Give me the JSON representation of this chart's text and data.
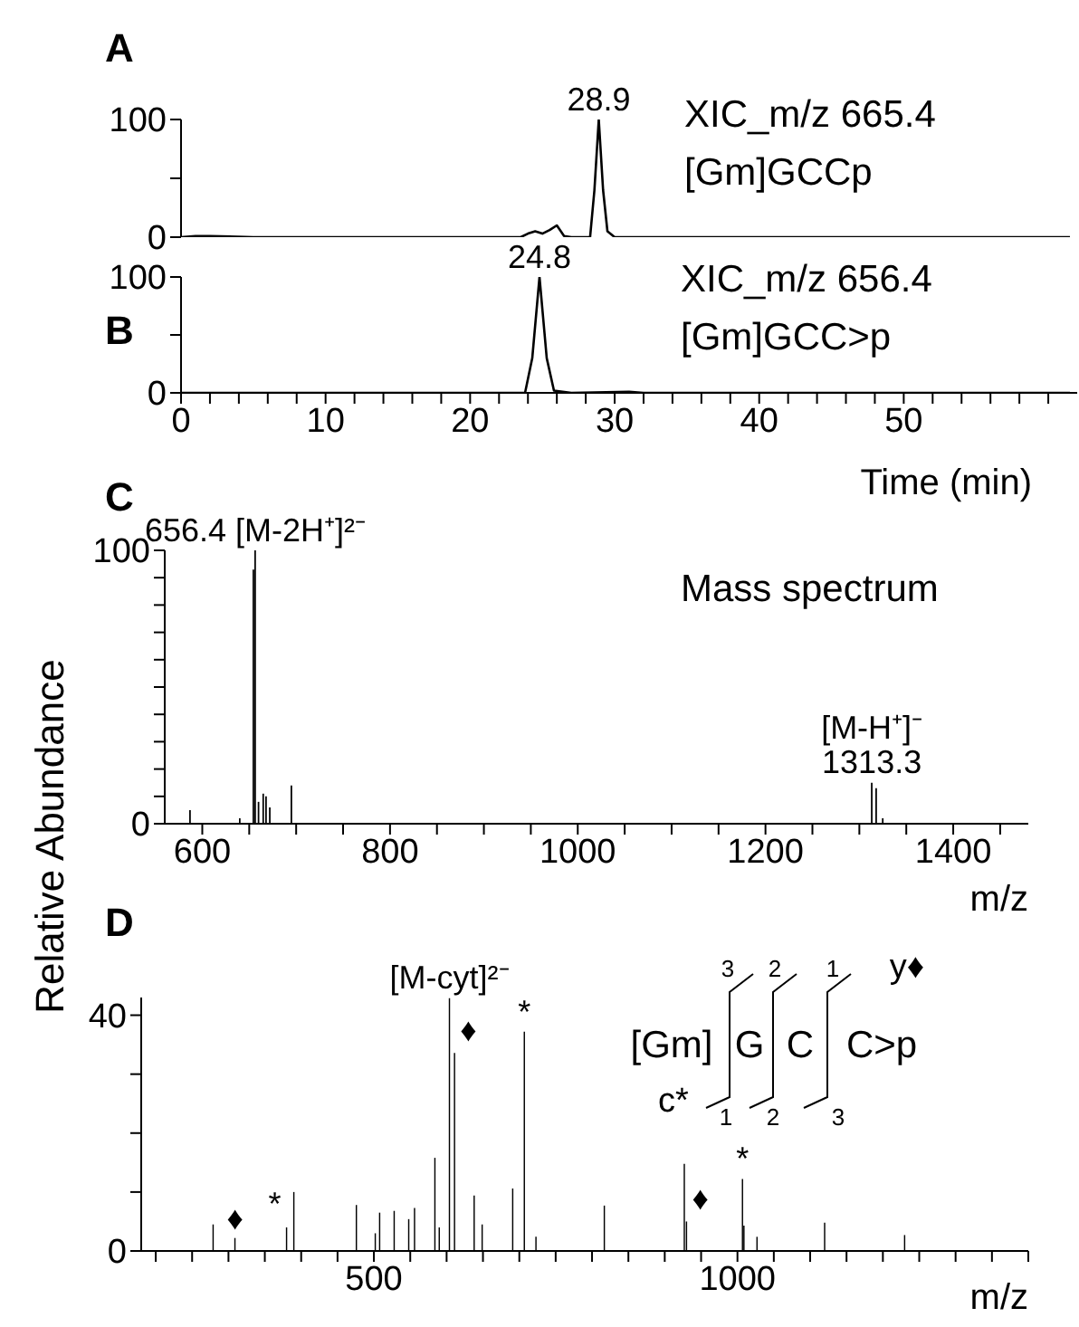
{
  "chart_data": [
    {
      "type": "line",
      "title": "A",
      "x": [
        0,
        1,
        2,
        5,
        10,
        20,
        23.5,
        24,
        24.5,
        25,
        25.5,
        26,
        26.5,
        27,
        28.3,
        28.6,
        28.9,
        29.2,
        29.5,
        30,
        40,
        50,
        61.5
      ],
      "values": [
        0,
        1,
        1,
        0,
        0,
        0,
        0,
        3,
        5,
        3,
        6,
        10,
        1,
        0,
        0,
        40,
        100,
        40,
        5,
        0,
        0,
        0,
        0
      ],
      "color": "#000000",
      "xlim": [
        0,
        62
      ],
      "ylim": [
        0,
        100
      ],
      "yticks": [
        0,
        {
          "value": 50,
          "label": null
        },
        100
      ],
      "tick_labels": "y",
      "marker": "none",
      "line_style": "solid",
      "grid": false,
      "legend": false,
      "annotations": [
        "XIC_m/z 665.4",
        "[Gm]GCCp",
        {
          "text": "28.9",
          "x": 28.9,
          "y": 100
        }
      ]
    },
    {
      "type": "line",
      "title": "B",
      "x": [
        0,
        22,
        23.8,
        24.3,
        24.8,
        25.3,
        25.8,
        27,
        31,
        32,
        61.5
      ],
      "values": [
        0,
        0,
        0,
        30,
        100,
        30,
        2,
        0,
        1,
        0,
        0
      ],
      "color": "#000000",
      "xlim": [
        0,
        62
      ],
      "ylim": [
        0,
        100
      ],
      "xlabel": "Time (min)",
      "xticks": [
        0,
        {
          "value": 2,
          "label": null
        },
        {
          "value": 4,
          "label": null
        },
        {
          "value": 6,
          "label": null
        },
        {
          "value": 8,
          "label": null
        },
        10,
        {
          "value": 12,
          "label": null
        },
        {
          "value": 14,
          "label": null
        },
        {
          "value": 16,
          "label": null
        },
        {
          "value": 18,
          "label": null
        },
        20,
        {
          "value": 22,
          "label": null
        },
        {
          "value": 24,
          "label": null
        },
        {
          "value": 26,
          "label": null
        },
        {
          "value": 28,
          "label": null
        },
        30,
        {
          "value": 32,
          "label": null
        },
        {
          "value": 34,
          "label": null
        },
        {
          "value": 36,
          "label": null
        },
        {
          "value": 38,
          "label": null
        },
        40,
        {
          "value": 42,
          "label": null
        },
        {
          "value": 44,
          "label": null
        },
        {
          "value": 46,
          "label": null
        },
        {
          "value": 48,
          "label": null
        },
        50,
        {
          "value": 52,
          "label": null
        },
        {
          "value": 54,
          "label": null
        },
        {
          "value": 56,
          "label": null
        },
        {
          "value": 58,
          "label": null
        },
        {
          "value": 60,
          "label": null
        }
      ],
      "yticks": [
        0,
        {
          "value": 50,
          "label": null
        },
        100
      ],
      "marker": "none",
      "line_style": "solid",
      "grid": false,
      "legend": false,
      "annotations": [
        "XIC_m/z 656.4",
        "[Gm]GCC>p",
        {
          "text": "24.8",
          "x": 24.8,
          "y": 100
        }
      ]
    },
    {
      "type": "bar",
      "title": "C",
      "x": [
        587,
        640,
        654.5,
        656.4,
        660,
        665,
        668,
        672,
        695,
        1313.3,
        1318,
        1325
      ],
      "values": [
        5,
        2,
        93,
        100,
        8,
        11,
        10,
        6,
        14,
        15,
        13,
        2
      ],
      "color": "#000000",
      "xlim": [
        560,
        1480
      ],
      "ylim": [
        0,
        100
      ],
      "xlabel": "m/z",
      "ylabel": "Relative Abundance",
      "xticks": [
        600,
        {
          "value": 650,
          "label": null
        },
        {
          "value": 700,
          "label": null
        },
        {
          "value": 750,
          "label": null
        },
        800,
        {
          "value": 850,
          "label": null
        },
        {
          "value": 900,
          "label": null
        },
        {
          "value": 950,
          "label": null
        },
        1000,
        {
          "value": 1050,
          "label": null
        },
        {
          "value": 1100,
          "label": null
        },
        {
          "value": 1150,
          "label": null
        },
        1200,
        {
          "value": 1250,
          "label": null
        },
        {
          "value": 1300,
          "label": null
        },
        {
          "value": 1350,
          "label": null
        },
        1400,
        {
          "value": 1450,
          "label": null
        }
      ],
      "yticks": [
        0,
        {
          "value": 10,
          "label": null
        },
        {
          "value": 20,
          "label": null
        },
        {
          "value": 30,
          "label": null
        },
        {
          "value": 40,
          "label": null
        },
        {
          "value": 50,
          "label": null
        },
        {
          "value": 60,
          "label": null
        },
        {
          "value": 70,
          "label": null
        },
        {
          "value": 80,
          "label": null
        },
        {
          "value": 90,
          "label": null
        },
        100
      ],
      "grid": false,
      "legend": false,
      "annotations": [
        "Mass spectrum",
        {
          "text": "656.4 [M-2H⁺]²⁻",
          "x": 656.4,
          "y": 100
        },
        {
          "text": "[M-H⁺]⁻",
          "x": 1313.3,
          "y": 15
        },
        {
          "text": "1313.3",
          "x": 1313.3,
          "y": 15
        }
      ]
    },
    {
      "type": "bar",
      "title": "D",
      "x": [
        279,
        309,
        380,
        390,
        476,
        502,
        508,
        528,
        548,
        556,
        584,
        590,
        604,
        611,
        638,
        649,
        691,
        707,
        723,
        817,
        927,
        930,
        1007,
        1009,
        1027,
        1120,
        1230
      ],
      "values": [
        4.5,
        2.2,
        4,
        10,
        7.8,
        3,
        6.5,
        6.8,
        5.4,
        7.3,
        15.8,
        4,
        42.9,
        33.6,
        9.4,
        4.5,
        10.6,
        37.2,
        2.4,
        7.7,
        14.8,
        5,
        12.2,
        4.3,
        2.4,
        4.8,
        2.7
      ],
      "color": "#000000",
      "xlim": [
        180,
        1400
      ],
      "ylim": [
        0,
        43
      ],
      "xlabel": "m/z",
      "xticks": [
        {
          "value": 200,
          "label": null
        },
        {
          "value": 250,
          "label": null
        },
        {
          "value": 300,
          "label": null
        },
        {
          "value": 350,
          "label": null
        },
        {
          "value": 400,
          "label": null
        },
        {
          "value": 450,
          "label": null
        },
        500,
        {
          "value": 550,
          "label": null
        },
        {
          "value": 600,
          "label": null
        },
        {
          "value": 650,
          "label": null
        },
        {
          "value": 700,
          "label": null
        },
        {
          "value": 750,
          "label": null
        },
        {
          "value": 800,
          "label": null
        },
        {
          "value": 850,
          "label": null
        },
        {
          "value": 900,
          "label": null
        },
        {
          "value": 950,
          "label": null
        },
        1000,
        {
          "value": 1050,
          "label": null
        },
        {
          "value": 1100,
          "label": null
        },
        {
          "value": 1150,
          "label": null
        },
        {
          "value": 1200,
          "label": null
        },
        {
          "value": 1250,
          "label": null
        },
        {
          "value": 1300,
          "label": null
        },
        {
          "value": 1350,
          "label": null
        },
        {
          "value": 1400,
          "label": null
        }
      ],
      "yticks": [
        0,
        {
          "value": 10,
          "label": null
        },
        {
          "value": 20,
          "label": null
        },
        {
          "value": 30,
          "label": null
        },
        40
      ],
      "grid": false,
      "legend": false,
      "annotations": [
        "[Gm]",
        "G",
        "C",
        "C>p",
        "y♦",
        "c*",
        "3",
        "2",
        "1",
        "1",
        "2",
        "3",
        {
          "text": "[M-cyt]²⁻",
          "x": 604,
          "y": 42.9
        },
        {
          "text": "♦",
          "x": 309,
          "y": 2.2
        },
        {
          "text": "*",
          "x": 380,
          "y": 4
        },
        {
          "text": "♦",
          "x": 611,
          "y": 33.6
        },
        {
          "text": "*",
          "x": 707,
          "y": 37.2
        },
        {
          "text": "♦",
          "x": 930,
          "y": 5
        },
        {
          "text": "*",
          "x": 1007,
          "y": 12.2
        }
      ]
    }
  ]
}
